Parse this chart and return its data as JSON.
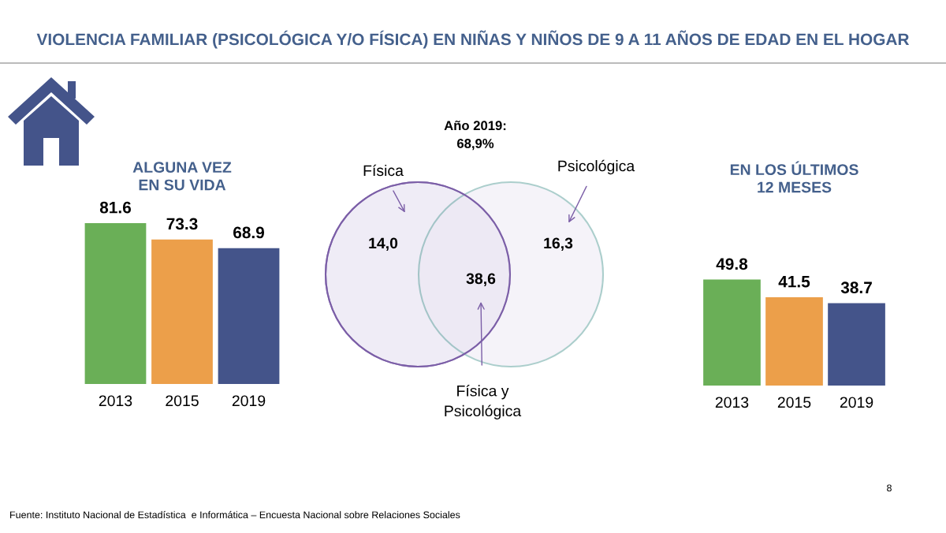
{
  "chart_data": [
    {
      "type": "bar",
      "title": "VIOLENCIA FAMILIAR (PSICOLÓGICA Y/O FÍSICA) EN NIÑAS Y NIÑOS DE 9 A 11 AÑOS DE EDAD EN EL HOGAR",
      "subtitle": "ALGUNA VEZ\nEN SU VIDA",
      "categories": [
        "2013",
        "2015",
        "2019"
      ],
      "values": [
        81.6,
        73.3,
        68.9
      ],
      "colors": [
        "#6aaf57",
        "#ec9f4a",
        "#44548a"
      ],
      "data_labels": true,
      "tick_labels": "x"
    },
    {
      "type": "other",
      "title": "Año 2019:\n68,9%",
      "categories": [
        "Física",
        "Física y\nPsicológica",
        "Psicológica"
      ],
      "values": [
        14.0,
        38.6,
        16.3
      ],
      "value_labels": [
        "14,0",
        "38,6",
        "16,3"
      ],
      "colors": [
        "#7b5ea7",
        "#ece8f4",
        "#5a9e9a"
      ]
    },
    {
      "type": "bar",
      "subtitle": "EN LOS ÚLTIMOS\n12 MESES",
      "categories": [
        "2013",
        "2015",
        "2019"
      ],
      "values": [
        49.8,
        41.5,
        38.7
      ],
      "colors": [
        "#6aaf57",
        "#ec9f4a",
        "#44548a"
      ],
      "data_labels": true,
      "tick_labels": "x",
      "annotations": [
        "8",
        "Fuente: Instituto Nacional de Estadística  e Informática – Encuesta Nacional sobre Relaciones Sociales"
      ]
    }
  ]
}
